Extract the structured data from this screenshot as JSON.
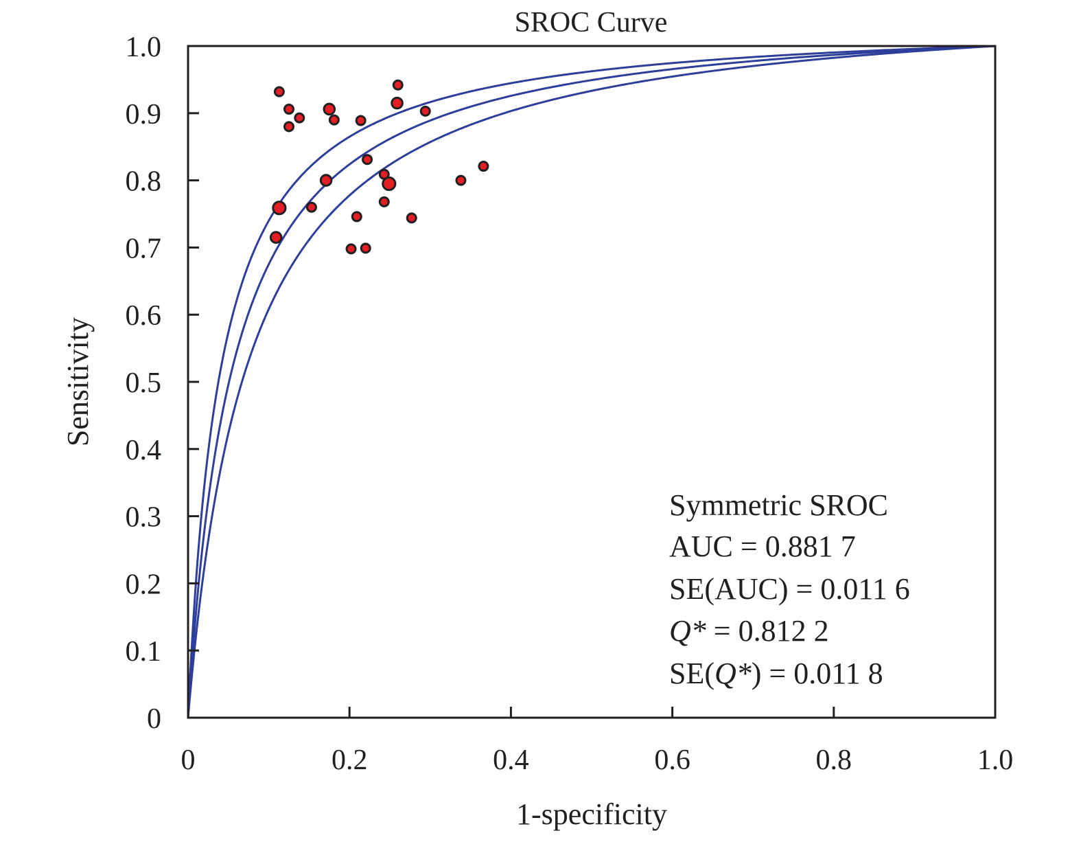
{
  "chart_data": {
    "type": "scatter",
    "title": "SROC Curve",
    "xlabel": "1-specificity",
    "ylabel": "Sensitivity",
    "xlim": [
      0,
      1.0
    ],
    "ylim": [
      0,
      1.0
    ],
    "x_ticks": [
      "0",
      "0.2",
      "0.4",
      "0.6",
      "0.8",
      "1.0"
    ],
    "y_ticks": [
      "0",
      "0.1",
      "0.2",
      "0.3",
      "0.4",
      "0.5",
      "0.6",
      "0.7",
      "0.8",
      "0.9",
      "1.0"
    ],
    "grid": false,
    "point_color": "#e31e24",
    "curve_color": "#2e3f9b",
    "points": [
      {
        "x": 0.113,
        "y": 0.932,
        "size": 1
      },
      {
        "x": 0.125,
        "y": 0.906,
        "size": 1
      },
      {
        "x": 0.138,
        "y": 0.893,
        "size": 1
      },
      {
        "x": 0.125,
        "y": 0.88,
        "size": 1
      },
      {
        "x": 0.175,
        "y": 0.906,
        "size": 1.2
      },
      {
        "x": 0.181,
        "y": 0.89,
        "size": 1
      },
      {
        "x": 0.214,
        "y": 0.889,
        "size": 1
      },
      {
        "x": 0.26,
        "y": 0.942,
        "size": 1
      },
      {
        "x": 0.259,
        "y": 0.915,
        "size": 1.2
      },
      {
        "x": 0.294,
        "y": 0.903,
        "size": 1
      },
      {
        "x": 0.222,
        "y": 0.831,
        "size": 1
      },
      {
        "x": 0.243,
        "y": 0.809,
        "size": 1
      },
      {
        "x": 0.249,
        "y": 0.795,
        "size": 1.4
      },
      {
        "x": 0.171,
        "y": 0.8,
        "size": 1.2
      },
      {
        "x": 0.338,
        "y": 0.8,
        "size": 1
      },
      {
        "x": 0.366,
        "y": 0.821,
        "size": 1
      },
      {
        "x": 0.113,
        "y": 0.759,
        "size": 1.4
      },
      {
        "x": 0.153,
        "y": 0.76,
        "size": 1
      },
      {
        "x": 0.243,
        "y": 0.768,
        "size": 1
      },
      {
        "x": 0.209,
        "y": 0.746,
        "size": 1
      },
      {
        "x": 0.277,
        "y": 0.744,
        "size": 1
      },
      {
        "x": 0.109,
        "y": 0.715,
        "size": 1.2
      },
      {
        "x": 0.202,
        "y": 0.698,
        "size": 1
      },
      {
        "x": 0.22,
        "y": 0.699,
        "size": 1
      }
    ],
    "curves": [
      {
        "q_star": 0.835
      },
      {
        "q_star": 0.8122
      },
      {
        "q_star": 0.789
      }
    ],
    "annotation": {
      "position": "bottom-right",
      "lines": [
        "Symmetric SROC",
        "AUC = 0.881 7",
        "SE(AUC) = 0.011 6",
        "Q* = 0.812 2",
        "SE(Q*) = 0.011 8"
      ]
    }
  }
}
